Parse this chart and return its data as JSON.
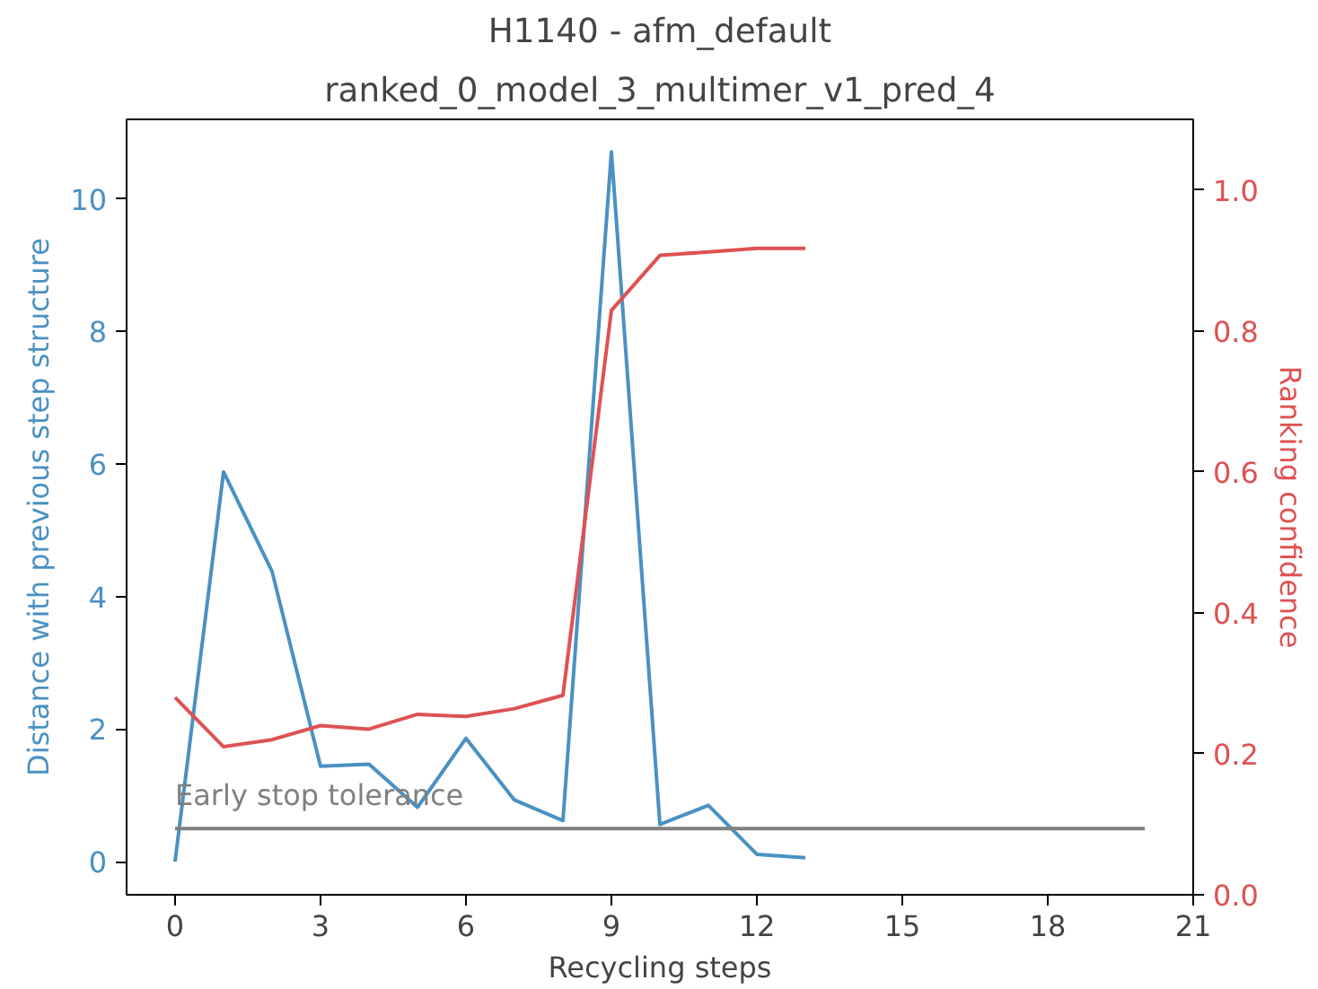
{
  "chart_data": {
    "type": "line",
    "title": "H1140 - afm_default",
    "subtitle": "ranked_0_model_3_multimer_v1_pred_4",
    "xlabel": "Recycling steps",
    "ylabel": "Distance with previous step structure",
    "y2label": "Ranking confidence",
    "xlim": [
      -1,
      21
    ],
    "xticks": [
      0,
      3,
      6,
      9,
      12,
      15,
      18,
      21
    ],
    "ylim": [
      -0.5,
      11.2
    ],
    "yticks": [
      0,
      2,
      4,
      6,
      8,
      10
    ],
    "y2lim": [
      0,
      1.1
    ],
    "y2ticks": [
      {
        "value": 0,
        "label": "0.0"
      },
      0.2,
      0.4,
      0.6,
      0.8,
      {
        "value": 1,
        "label": "1.0"
      }
    ],
    "grid": false,
    "series": [
      {
        "color": "#4a91c2",
        "x": [
          0,
          1,
          2,
          3,
          4,
          5,
          6,
          7,
          8,
          9,
          10,
          11,
          12,
          13
        ],
        "values": [
          0,
          5.88,
          4.38,
          1.44,
          1.47,
          0.82,
          1.86,
          0.93,
          0.62,
          10.71,
          0.56,
          0.85,
          0.11,
          0.06
        ]
      },
      {
        "color": "#de5253",
        "axis": "y2",
        "x": [
          0,
          1,
          2,
          3,
          4,
          5,
          6,
          7,
          8,
          9,
          10,
          11,
          12,
          13
        ],
        "values": [
          0.28,
          0.21,
          0.22,
          0.24,
          0.235,
          0.256,
          0.253,
          0.264,
          0.283,
          0.829,
          0.907,
          0.912,
          0.917,
          0.917
        ]
      },
      {
        "color": "#808080",
        "x": [
          0,
          20
        ],
        "values": [
          0.5,
          0.5
        ]
      }
    ],
    "annotations": [
      {
        "text": "Early stop tolerance",
        "x": 0,
        "y": 0.75
      }
    ]
  }
}
